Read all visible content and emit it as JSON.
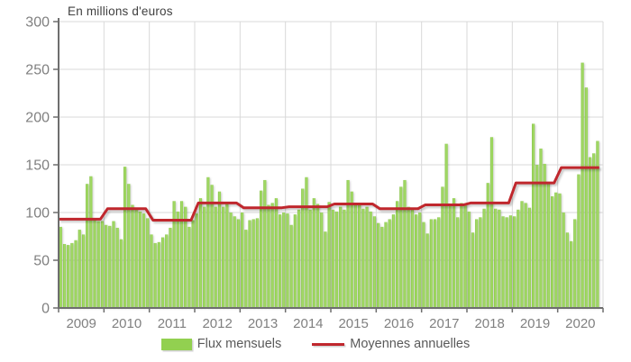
{
  "title": "En millions d'euros",
  "legend": {
    "bars_label": "Flux mensuels",
    "line_label": "Moyennes annuelles"
  },
  "colors": {
    "bar": "#92D050",
    "bar_light": "#A6DB6C",
    "bar_dark": "#83C241",
    "line": "#C0272D",
    "grid": "#D9D9D9",
    "axis": "#6E6E6E",
    "tick_text": "#808080",
    "background": "#FFFFFF"
  },
  "chart_data": {
    "type": "bar",
    "subtype": "monthly-bars-with-annual-average-step-line",
    "title": "En millions d'euros",
    "ylabel": "",
    "xlabel": "",
    "ylim": [
      0,
      300
    ],
    "y_ticks": [
      300,
      250,
      200,
      150,
      100,
      50,
      0
    ],
    "grid": "both",
    "legend_position": "bottom",
    "years": [
      2009,
      2010,
      2011,
      2012,
      2013,
      2014,
      2015,
      2016,
      2017,
      2018,
      2019,
      2020
    ],
    "series": [
      {
        "name": "Flux mensuels",
        "type": "bar",
        "color": "#92D050",
        "monthly_values": [
          [
            85,
            67,
            66,
            68,
            71,
            82,
            77,
            130,
            138,
            92,
            91,
            91
          ],
          [
            87,
            86,
            91,
            84,
            72,
            148,
            130,
            108,
            105,
            101,
            99,
            94
          ],
          [
            77,
            68,
            69,
            74,
            77,
            84,
            112,
            101,
            112,
            106,
            85,
            92
          ],
          [
            99,
            115,
            106,
            137,
            129,
            106,
            122,
            106,
            109,
            100,
            96,
            93
          ],
          [
            100,
            82,
            92,
            93,
            94,
            123,
            134,
            108,
            110,
            115,
            98,
            100
          ],
          [
            99,
            87,
            98,
            103,
            125,
            137,
            103,
            115,
            109,
            100,
            80,
            111
          ],
          [
            103,
            101,
            106,
            103,
            134,
            122,
            110,
            109,
            104,
            106,
            101,
            96
          ],
          [
            89,
            85,
            90,
            93,
            98,
            112,
            127,
            134,
            106,
            104,
            98,
            100
          ],
          [
            90,
            78,
            93,
            93,
            95,
            127,
            172,
            108,
            115,
            95,
            110,
            109
          ],
          [
            101,
            79,
            93,
            95,
            104,
            131,
            179,
            104,
            103,
            96,
            95,
            97
          ],
          [
            96,
            103,
            112,
            110,
            105,
            193,
            150,
            167,
            151,
            132,
            117,
            121
          ],
          [
            120,
            100,
            79,
            70,
            93,
            140,
            257,
            231,
            158,
            162,
            175
          ]
        ]
      },
      {
        "name": "Moyennes annuelles",
        "type": "step-line",
        "color": "#C0272D",
        "annual_averages": [
          93,
          104,
          92,
          110,
          105,
          106,
          109,
          104,
          108,
          110,
          131,
          147
        ]
      }
    ]
  }
}
